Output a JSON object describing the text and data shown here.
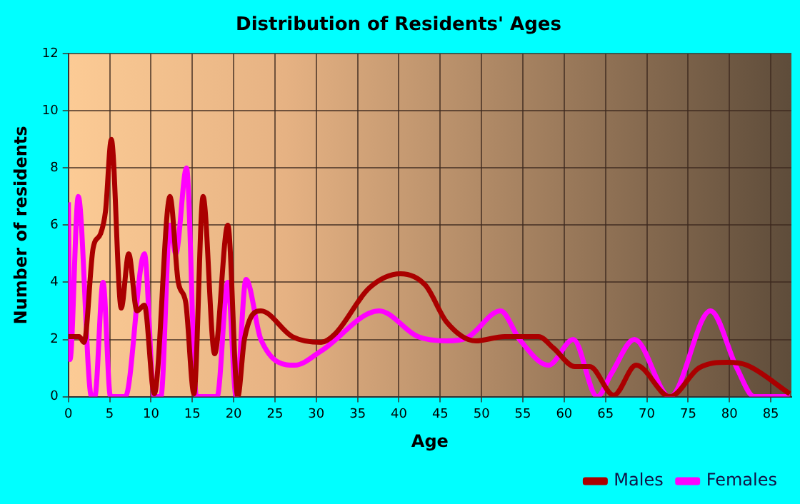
{
  "chart_data": {
    "type": "line",
    "title": "Distribution of Residents' Ages",
    "xlabel": "Age",
    "ylabel": "Number of residents",
    "xlim": [
      0,
      87.5
    ],
    "xticks": [
      0,
      5,
      10,
      15,
      20,
      25,
      30,
      35,
      40,
      45,
      50,
      55,
      60,
      65,
      70,
      75,
      80,
      85
    ],
    "ylim": [
      0,
      12
    ],
    "yticks": [
      0,
      2,
      4,
      6,
      8,
      10,
      12
    ],
    "grid": true,
    "legend": "bottom right",
    "marker": "none",
    "line_style": "solid",
    "series": [
      {
        "name": "Males",
        "color": "#aa0000",
        "x": [
          0,
          1.3,
          1.9,
          3,
          3.9,
          4.5,
          5.2,
          6.4,
          7.3,
          8.3,
          9.2,
          10.4,
          12.3,
          13.3,
          14.2,
          15.2,
          16.3,
          17.7,
          19.3,
          20.5,
          21.3,
          23.3,
          27.1,
          30.6,
          32.3,
          36.4,
          40.2,
          43.2,
          45.8,
          49.3,
          52.8,
          56.9,
          58.7,
          61.3,
          63.1,
          66,
          68.7,
          72.8,
          76.3,
          79.8,
          82.1,
          87.3
        ],
        "values": [
          2.1,
          2.1,
          1.9,
          5.2,
          5.7,
          6.5,
          9,
          3.1,
          5,
          3,
          3.2,
          0.1,
          7,
          4,
          3.3,
          0.1,
          7,
          1.5,
          6,
          0,
          2,
          3,
          2.1,
          1.9,
          2.2,
          3.8,
          4.3,
          3.9,
          2.6,
          1.95,
          2.1,
          2.1,
          1.7,
          1.05,
          1.05,
          0.05,
          1.1,
          0,
          1,
          1.2,
          1.1,
          0.1
        ]
      },
      {
        "name": "Females",
        "color": "#ff00ff",
        "x": [
          0,
          0.2,
          1.2,
          2.8,
          3.2,
          4.2,
          5.1,
          6.9,
          9.2,
          10.4,
          11.2,
          12.3,
          13,
          14.3,
          15.5,
          18,
          19.3,
          20.3,
          21.5,
          23.3,
          27.4,
          30.6,
          37.6,
          42.3,
          45.8,
          48.2,
          52.3,
          54.6,
          58.1,
          61.1,
          64,
          65.7,
          68.5,
          72.8,
          77.7,
          80.9,
          83,
          87.3
        ],
        "values": [
          6.8,
          1.3,
          7,
          0,
          0,
          4,
          0,
          0,
          5,
          0,
          0,
          6,
          5,
          8,
          0,
          0,
          4,
          0,
          4.1,
          2,
          1.1,
          1.6,
          3,
          2.1,
          1.95,
          2.05,
          3,
          2,
          1.1,
          2,
          0,
          0.8,
          2,
          0,
          3,
          1,
          0,
          0
        ]
      }
    ]
  }
}
